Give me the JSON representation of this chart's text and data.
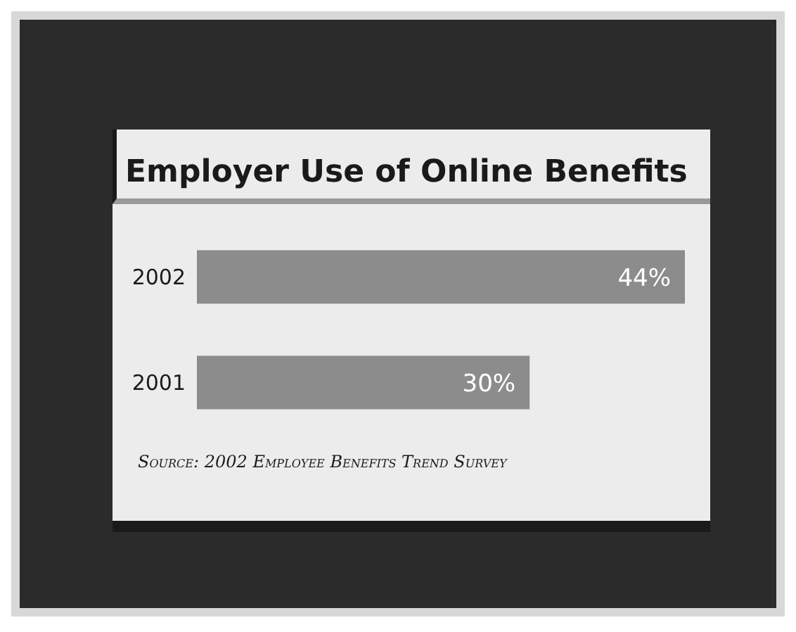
{
  "chart_data": {
    "type": "bar",
    "orientation": "horizontal",
    "title": "Employer Use of Online Benefits",
    "categories": [
      "2002",
      "2001"
    ],
    "values": [
      44,
      30
    ],
    "value_labels": [
      "44%",
      "30%"
    ],
    "color": "#8c8c8c",
    "annotations": [
      "Source: 2002 Employee Benefits Trend Survey"
    ]
  }
}
